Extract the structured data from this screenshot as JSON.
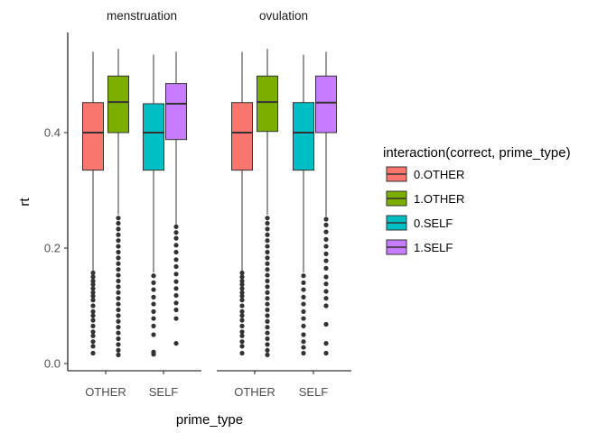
{
  "chart_data": {
    "type": "box",
    "xlabel": "prime_type",
    "ylabel": "rt",
    "ylim": [
      -0.01,
      0.57
    ],
    "yticks": [
      0.0,
      0.2,
      0.4
    ],
    "ytick_labels": [
      "0.0",
      "0.2",
      "0.4"
    ],
    "categories": [
      "OTHER",
      "SELF"
    ],
    "legend": {
      "title": "interaction(correct, prime_type)",
      "placement": "right",
      "entries": [
        {
          "label": "0.OTHER",
          "color": "#F8766D"
        },
        {
          "label": "1.OTHER",
          "color": "#7CAE00"
        },
        {
          "label": "0.SELF",
          "color": "#00BFC4"
        },
        {
          "label": "1.SELF",
          "color": "#C77CFF"
        }
      ]
    },
    "facets": [
      {
        "label": "menstruation",
        "boxes": [
          {
            "category": "OTHER",
            "group": "0.OTHER",
            "q1": 0.335,
            "median": 0.4,
            "q3": 0.452,
            "whisker_low": 0.16,
            "whisker_high": 0.54,
            "outliers": [
              0.157,
              0.15,
              0.143,
              0.137,
              0.13,
              0.123,
              0.117,
              0.11,
              0.1,
              0.09,
              0.083,
              0.075,
              0.065,
              0.055,
              0.048,
              0.038,
              0.03,
              0.018
            ]
          },
          {
            "category": "OTHER",
            "group": "1.OTHER",
            "q1": 0.4,
            "median": 0.453,
            "q3": 0.498,
            "whisker_low": 0.258,
            "whisker_high": 0.545,
            "outliers": [
              0.252,
              0.243,
              0.233,
              0.223,
              0.213,
              0.203,
              0.193,
              0.183,
              0.173,
              0.163,
              0.153,
              0.143,
              0.133,
              0.123,
              0.113,
              0.103,
              0.093,
              0.083,
              0.073,
              0.063,
              0.053,
              0.043,
              0.033,
              0.023,
              0.015
            ]
          },
          {
            "category": "SELF",
            "group": "0.SELF",
            "q1": 0.335,
            "median": 0.4,
            "q3": 0.45,
            "whisker_low": 0.158,
            "whisker_high": 0.535,
            "outliers": [
              0.152,
              0.14,
              0.128,
              0.115,
              0.103,
              0.09,
              0.078,
              0.065,
              0.05,
              0.02,
              0.016
            ]
          },
          {
            "category": "SELF",
            "group": "1.SELF",
            "q1": 0.388,
            "median": 0.45,
            "q3": 0.485,
            "whisker_low": 0.24,
            "whisker_high": 0.54,
            "outliers": [
              0.237,
              0.227,
              0.217,
              0.205,
              0.193,
              0.18,
              0.168,
              0.155,
              0.142,
              0.13,
              0.118,
              0.105,
              0.093,
              0.078,
              0.035
            ]
          }
        ]
      },
      {
        "label": "ovulation",
        "boxes": [
          {
            "category": "OTHER",
            "group": "0.OTHER",
            "q1": 0.335,
            "median": 0.4,
            "q3": 0.452,
            "whisker_low": 0.16,
            "whisker_high": 0.54,
            "outliers": [
              0.157,
              0.15,
              0.143,
              0.137,
              0.13,
              0.123,
              0.117,
              0.11,
              0.1,
              0.09,
              0.083,
              0.075,
              0.065,
              0.055,
              0.048,
              0.038,
              0.03,
              0.018
            ]
          },
          {
            "category": "OTHER",
            "group": "1.OTHER",
            "q1": 0.402,
            "median": 0.453,
            "q3": 0.498,
            "whisker_low": 0.258,
            "whisker_high": 0.545,
            "outliers": [
              0.252,
              0.243,
              0.233,
              0.223,
              0.213,
              0.203,
              0.193,
              0.183,
              0.173,
              0.163,
              0.153,
              0.143,
              0.133,
              0.123,
              0.113,
              0.103,
              0.093,
              0.083,
              0.073,
              0.063,
              0.053,
              0.043,
              0.033,
              0.023,
              0.015
            ]
          },
          {
            "category": "SELF",
            "group": "0.SELF",
            "q1": 0.335,
            "median": 0.4,
            "q3": 0.452,
            "whisker_low": 0.158,
            "whisker_high": 0.535,
            "outliers": [
              0.152,
              0.14,
              0.128,
              0.115,
              0.103,
              0.09,
              0.078,
              0.065,
              0.05,
              0.038,
              0.028,
              0.018
            ]
          },
          {
            "category": "SELF",
            "group": "1.SELF",
            "q1": 0.4,
            "median": 0.452,
            "q3": 0.498,
            "whisker_low": 0.255,
            "whisker_high": 0.54,
            "outliers": [
              0.25,
              0.24,
              0.228,
              0.215,
              0.203,
              0.19,
              0.178,
              0.165,
              0.15,
              0.138,
              0.125,
              0.113,
              0.1,
              0.068,
              0.035,
              0.018
            ]
          }
        ]
      }
    ]
  }
}
